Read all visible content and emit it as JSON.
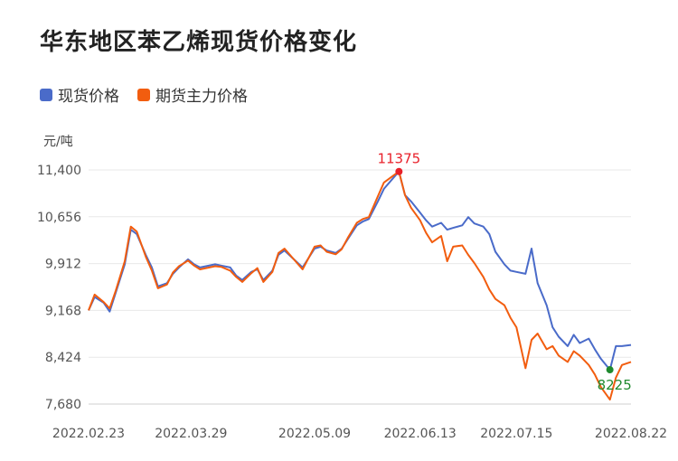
{
  "title": "华东地区苯乙烯现货价格变化",
  "legend": [
    {
      "label": "现货价格",
      "color": "#4a6bc9"
    },
    {
      "label": "期货主力价格",
      "color": "#f25d0f"
    }
  ],
  "chart_data": {
    "type": "line",
    "ylabel": "元/吨",
    "ylim": [
      7680,
      11400
    ],
    "yticks": [
      7680,
      8424,
      9168,
      9912,
      10656,
      11400
    ],
    "ytick_labels": [
      "7,680",
      "8,424",
      "9,168",
      "9,912",
      "10,656",
      "11,400"
    ],
    "xlim": [
      "2022-02-23",
      "2022-08-22"
    ],
    "xticks": [
      "2022-02-23",
      "2022-03-29",
      "2022-05-09",
      "2022-06-13",
      "2022-07-15",
      "2022-08-22"
    ],
    "xtick_labels": [
      "2022.02.23",
      "2022.03.29",
      "2022.05.09",
      "2022.06.13",
      "2022.07.15",
      "2022.08.22"
    ],
    "grid": true,
    "legend_position": "top-left",
    "series": [
      {
        "name": "现货价格",
        "color": "#4a6bc9",
        "x": [
          "2022-02-23",
          "2022-02-25",
          "2022-02-28",
          "2022-03-02",
          "2022-03-04",
          "2022-03-07",
          "2022-03-09",
          "2022-03-11",
          "2022-03-14",
          "2022-03-16",
          "2022-03-18",
          "2022-03-21",
          "2022-03-23",
          "2022-03-25",
          "2022-03-28",
          "2022-03-30",
          "2022-04-01",
          "2022-04-06",
          "2022-04-08",
          "2022-04-11",
          "2022-04-13",
          "2022-04-15",
          "2022-04-18",
          "2022-04-20",
          "2022-04-22",
          "2022-04-25",
          "2022-04-27",
          "2022-04-29",
          "2022-05-05",
          "2022-05-09",
          "2022-05-11",
          "2022-05-13",
          "2022-05-16",
          "2022-05-18",
          "2022-05-20",
          "2022-05-23",
          "2022-05-25",
          "2022-05-27",
          "2022-05-30",
          "2022-06-01",
          "2022-06-06",
          "2022-06-08",
          "2022-06-10",
          "2022-06-13",
          "2022-06-15",
          "2022-06-17",
          "2022-06-20",
          "2022-06-22",
          "2022-06-24",
          "2022-06-27",
          "2022-06-29",
          "2022-07-01",
          "2022-07-04",
          "2022-07-06",
          "2022-07-08",
          "2022-07-11",
          "2022-07-13",
          "2022-07-15",
          "2022-07-18",
          "2022-07-20",
          "2022-07-22",
          "2022-07-25",
          "2022-07-27",
          "2022-07-29",
          "2022-08-01",
          "2022-08-03",
          "2022-08-05",
          "2022-08-08",
          "2022-08-10",
          "2022-08-12",
          "2022-08-15",
          "2022-08-17",
          "2022-08-19",
          "2022-08-22"
        ],
        "values": [
          9168,
          9380,
          9290,
          9150,
          9450,
          9900,
          10450,
          10380,
          10050,
          9850,
          9550,
          9600,
          9750,
          9850,
          9980,
          9900,
          9850,
          9900,
          9880,
          9850,
          9720,
          9650,
          9780,
          9820,
          9650,
          9800,
          10050,
          10120,
          9850,
          10150,
          10180,
          10120,
          10080,
          10150,
          10300,
          10520,
          10580,
          10620,
          10900,
          11100,
          11375,
          11000,
          10900,
          10720,
          10600,
          10500,
          10560,
          10450,
          10480,
          10520,
          10650,
          10550,
          10500,
          10380,
          10100,
          9900,
          9800,
          9780,
          9750,
          10150,
          9600,
          9250,
          8900,
          8750,
          8600,
          8780,
          8650,
          8720,
          8550,
          8400,
          8225,
          8600,
          8600,
          8620
        ],
        "x_days": [
          0,
          2,
          5,
          7,
          9,
          12,
          14,
          16,
          19,
          21,
          23,
          26,
          28,
          30,
          33,
          35,
          37,
          42,
          44,
          47,
          49,
          51,
          54,
          56,
          58,
          61,
          63,
          65,
          71,
          75,
          77,
          79,
          82,
          84,
          86,
          89,
          91,
          93,
          96,
          98,
          103,
          105,
          107,
          110,
          112,
          114,
          117,
          119,
          121,
          124,
          126,
          128,
          131,
          133,
          135,
          138,
          140,
          142,
          145,
          147,
          149,
          152,
          154,
          156,
          159,
          161,
          163,
          166,
          168,
          170,
          173,
          175,
          177,
          180
        ]
      },
      {
        "name": "期货主力价格",
        "color": "#f25d0f",
        "values": [
          9168,
          9420,
          9300,
          9200,
          9480,
          9950,
          10500,
          10420,
          10020,
          9800,
          9520,
          9580,
          9770,
          9870,
          9960,
          9880,
          9820,
          9870,
          9860,
          9800,
          9700,
          9620,
          9760,
          9840,
          9620,
          9780,
          10080,
          10150,
          9820,
          10180,
          10200,
          10100,
          10060,
          10140,
          10320,
          10560,
          10620,
          10650,
          10980,
          11200,
          11375,
          11000,
          10800,
          10600,
          10400,
          10250,
          10350,
          9950,
          10180,
          10200,
          10050,
          9920,
          9700,
          9500,
          9350,
          9250,
          9050,
          8900,
          8250,
          8700,
          8800,
          8550,
          8600,
          8450,
          8350,
          8520,
          8450,
          8300,
          8150,
          7950,
          7750,
          8100,
          8300,
          8350
        ]
      }
    ],
    "annotations": [
      {
        "label": "11375",
        "series": "期货主力价格",
        "x": "2022-06-06",
        "value": 11375,
        "color": "#e8202a"
      },
      {
        "label": "8225",
        "series": "现货价格",
        "x": "2022-08-15",
        "value": 8225,
        "color": "#1f8a2e"
      }
    ]
  }
}
